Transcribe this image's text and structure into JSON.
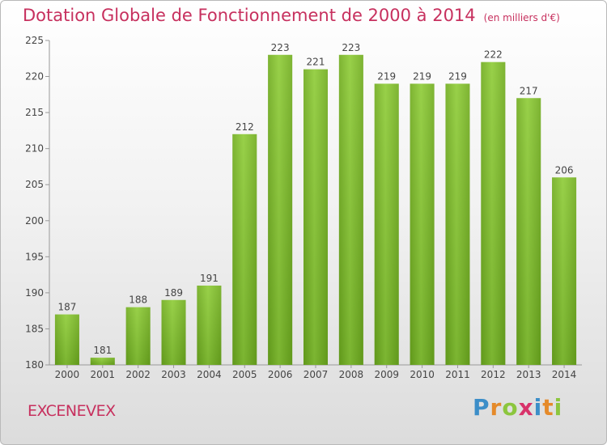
{
  "chart_data": {
    "type": "bar",
    "title": "Dotation Globale de Fonctionnement de 2000 à 2014",
    "subtitle": "(en milliers d'€)",
    "xlabel": "",
    "ylabel": "",
    "categories": [
      "2000",
      "2001",
      "2002",
      "2003",
      "2004",
      "2005",
      "2006",
      "2007",
      "2008",
      "2009",
      "2010",
      "2011",
      "2012",
      "2013",
      "2014"
    ],
    "values": [
      187,
      181,
      188,
      189,
      191,
      212,
      223,
      221,
      223,
      219,
      219,
      219,
      222,
      217,
      206
    ],
    "ylim": [
      180,
      225
    ],
    "yticks": [
      180,
      185,
      190,
      195,
      200,
      205,
      210,
      215,
      220,
      225
    ],
    "grid": false,
    "bar_color": "#7cb82f"
  },
  "footer": {
    "place": "EXCENEVEX",
    "logo": "Proxiti"
  }
}
